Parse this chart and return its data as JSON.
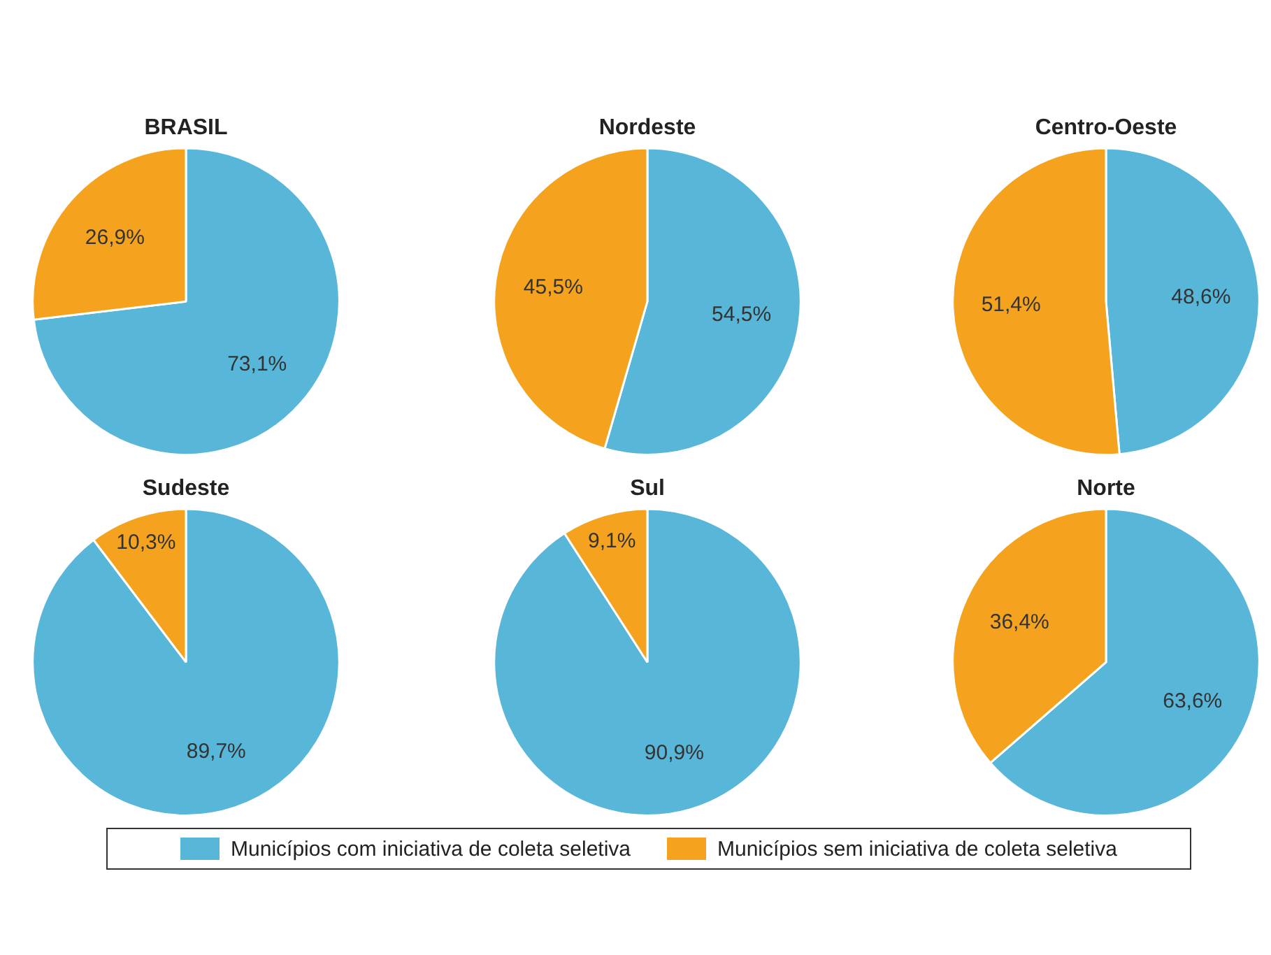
{
  "chart_data": [
    {
      "type": "pie",
      "title": "BRASIL",
      "categories": [
        "Municípios com iniciativa de coleta seletiva",
        "Municípios sem iniciativa de coleta seletiva"
      ],
      "values": [
        73.1,
        26.9
      ],
      "colors": [
        "#58b6d8",
        "#f5a31e"
      ],
      "value_labels": [
        "73,1%",
        "26,9%"
      ],
      "legend": "bottom"
    },
    {
      "type": "pie",
      "title": "Nordeste",
      "categories": [
        null,
        null
      ],
      "values": [
        54.5,
        45.5
      ],
      "colors": [
        "#58b6d8",
        "#f5a31e"
      ],
      "value_labels": [
        "54,5%",
        "45,5%"
      ]
    },
    {
      "type": "pie",
      "title": "Centro-Oeste",
      "categories": [
        null,
        null
      ],
      "values": [
        48.6,
        51.4
      ],
      "colors": [
        "#58b6d8",
        "#f5a31e"
      ],
      "value_labels": [
        "48,6%",
        "51,4%"
      ]
    },
    {
      "type": "pie",
      "title": "Sudeste",
      "categories": [
        null,
        null
      ],
      "values": [
        89.7,
        10.3
      ],
      "colors": [
        "#58b6d8",
        "#f5a31e"
      ],
      "value_labels": [
        "89,7%",
        "10,3%"
      ]
    },
    {
      "type": "pie",
      "title": "Sul",
      "categories": [
        null,
        null
      ],
      "values": [
        90.9,
        9.1
      ],
      "colors": [
        "#58b6d8",
        "#f5a31e"
      ],
      "value_labels": [
        "90,9%",
        "9,1%"
      ]
    },
    {
      "type": "pie",
      "title": "Norte",
      "categories": [
        null,
        null
      ],
      "values": [
        63.6,
        36.4
      ],
      "colors": [
        "#58b6d8",
        "#f5a31e"
      ],
      "value_labels": [
        "63,6%",
        "36,4%"
      ]
    }
  ]
}
